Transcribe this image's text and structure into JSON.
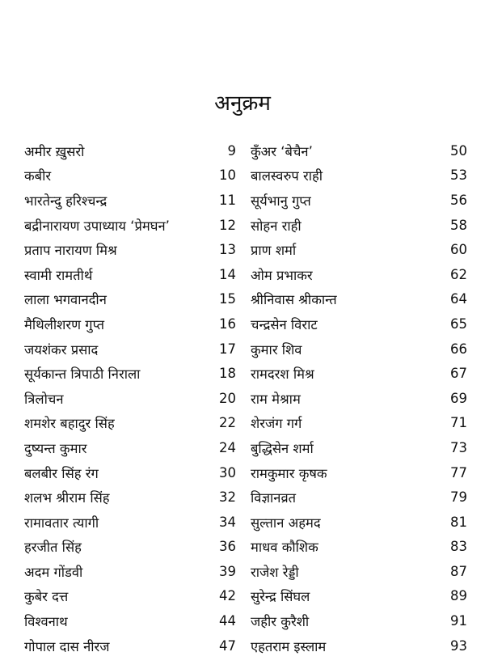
{
  "title": "अनुक्रम",
  "left_entries": [
    {
      "name": "अमीर ख़ुसरो",
      "page": "9"
    },
    {
      "name": "कबीर",
      "page": "10"
    },
    {
      "name": "भारतेन्दु हरिश्चन्द्र",
      "page": "11"
    },
    {
      "name": "बद्रीनारायण उपाध्याय ‘प्रेमघन’",
      "page": "12"
    },
    {
      "name": "प्रताप नारायण मिश्र",
      "page": "13"
    },
    {
      "name": "स्वामी रामतीर्थ",
      "page": "14"
    },
    {
      "name": "लाला भगवानदीन",
      "page": "15"
    },
    {
      "name": "मैथिलीशरण गुप्त",
      "page": "16"
    },
    {
      "name": "जयशंकर प्रसाद",
      "page": "17"
    },
    {
      "name": "सूर्यकान्त त्रिपाठी निराला",
      "page": "18"
    },
    {
      "name": "त्रिलोचन",
      "page": "20"
    },
    {
      "name": "शमशेर बहादुर सिंह",
      "page": "22"
    },
    {
      "name": "दुष्यन्त कुमार",
      "page": "24"
    },
    {
      "name": "बलबीर सिंह रंग",
      "page": "30"
    },
    {
      "name": "शलभ श्रीराम सिंह",
      "page": "32"
    },
    {
      "name": "रामावतार त्यागी",
      "page": "34"
    },
    {
      "name": "हरजीत सिंह",
      "page": "36"
    },
    {
      "name": "अदम गोंडवी",
      "page": "39"
    },
    {
      "name": "कुबेर दत्त",
      "page": "42"
    },
    {
      "name": "विश्वनाथ",
      "page": "44"
    },
    {
      "name": "गोपाल दास नीरज",
      "page": "47"
    }
  ],
  "right_entries": [
    {
      "name": "कुँअर ‘बेचैन’",
      "page": "50"
    },
    {
      "name": "बालस्वरुप राही",
      "page": "53"
    },
    {
      "name": "सूर्यभानु गुप्त",
      "page": "56"
    },
    {
      "name": "सोहन राही",
      "page": "58"
    },
    {
      "name": "प्राण शर्मा",
      "page": "60"
    },
    {
      "name": "ओम प्रभाकर",
      "page": "62"
    },
    {
      "name": "श्रीनिवास श्रीकान्त",
      "page": "64"
    },
    {
      "name": "चन्द्रसेन विराट",
      "page": "65"
    },
    {
      "name": "कुमार शिव",
      "page": "66"
    },
    {
      "name": "रामदरश मिश्र",
      "page": "67"
    },
    {
      "name": "राम मेश्राम",
      "page": "69"
    },
    {
      "name": "शेरजंग गर्ग",
      "page": "71"
    },
    {
      "name": "बुद्धिसेन शर्मा",
      "page": "73"
    },
    {
      "name": "रामकुमार कृषक",
      "page": "77"
    },
    {
      "name": "विज्ञानव्रत",
      "page": "79"
    },
    {
      "name": "सुल्तान अहमद",
      "page": "81"
    },
    {
      "name": "माधव कौशिक",
      "page": "83"
    },
    {
      "name": "राजेश रेड्डी",
      "page": "87"
    },
    {
      "name": "सुरेन्द्र सिंघल",
      "page": "89"
    },
    {
      "name": "जहीर कुरैशी",
      "page": "91"
    },
    {
      "name": "एहतराम इस्लाम",
      "page": "93"
    }
  ]
}
